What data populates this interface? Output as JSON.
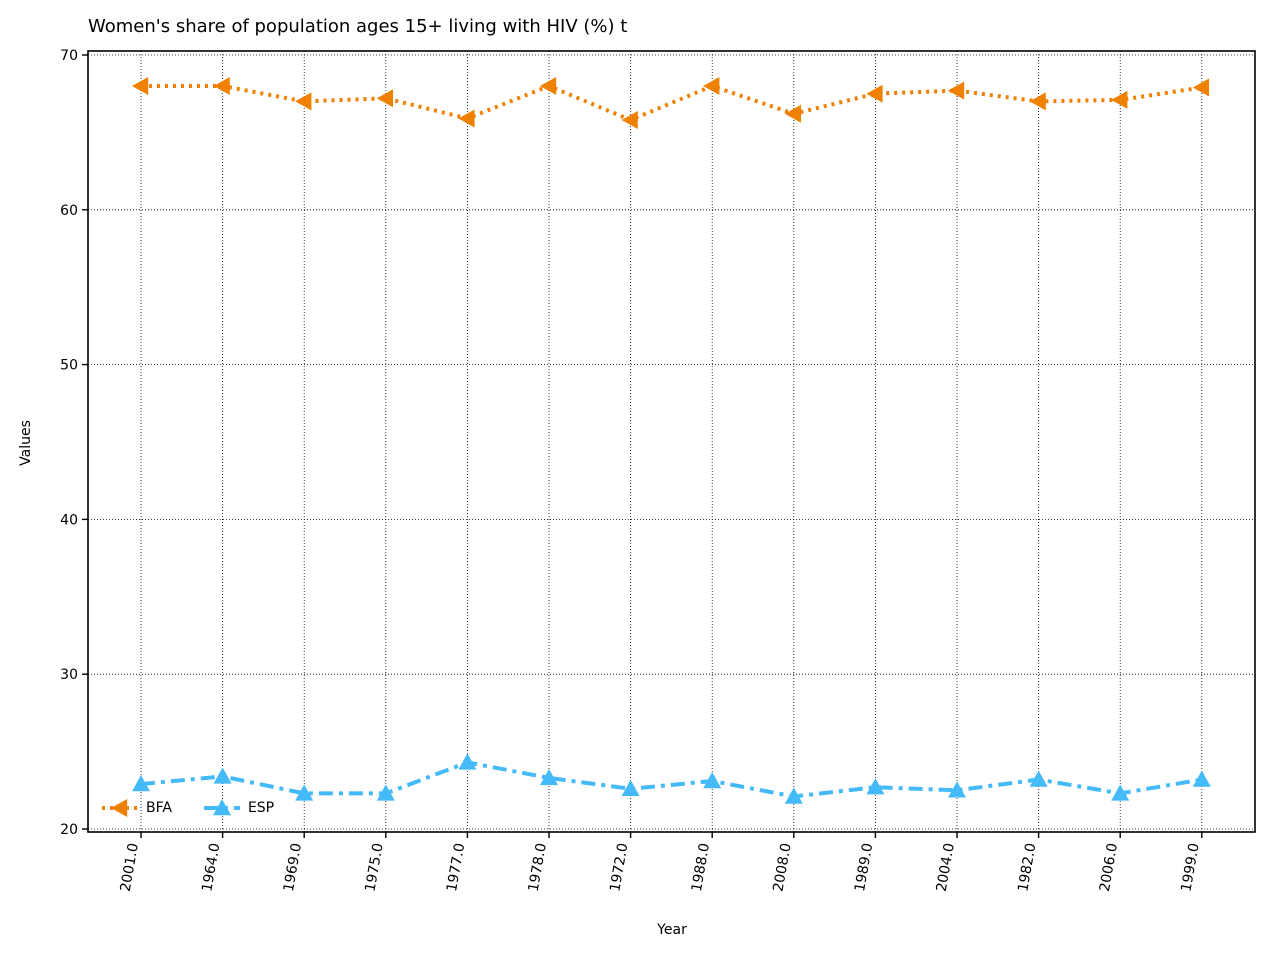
{
  "chart_data": {
    "type": "line",
    "title": "Women's share of population ages 15+ living with HIV (%) t",
    "xlabel": "Year",
    "ylabel": "Values",
    "categories": [
      "2001.0",
      "1964.0",
      "1969.0",
      "1975.0",
      "1977.0",
      "1978.0",
      "1972.0",
      "1988.0",
      "2008.0",
      "1989.0",
      "2004.0",
      "1982.0",
      "2006.0",
      "1999.0"
    ],
    "ylim": [
      20,
      70
    ],
    "yticks": [
      20,
      30,
      40,
      50,
      60,
      70
    ],
    "grid": true,
    "legend_position": "bottom-left",
    "series": [
      {
        "name": "BFA",
        "color": "#f08000",
        "line_style": "dotted",
        "marker": "triangle-left",
        "values": [
          68.0,
          68.0,
          67.0,
          67.2,
          65.9,
          68.0,
          65.8,
          68.0,
          66.2,
          67.5,
          67.7,
          67.0,
          67.1,
          67.9
        ]
      },
      {
        "name": "ESP",
        "color": "#44bbf8",
        "line_style": "dashdot",
        "marker": "triangle-up",
        "values": [
          22.9,
          23.4,
          22.3,
          22.3,
          24.3,
          23.3,
          22.6,
          23.1,
          22.1,
          22.7,
          22.5,
          23.2,
          22.3,
          23.2
        ]
      }
    ]
  }
}
